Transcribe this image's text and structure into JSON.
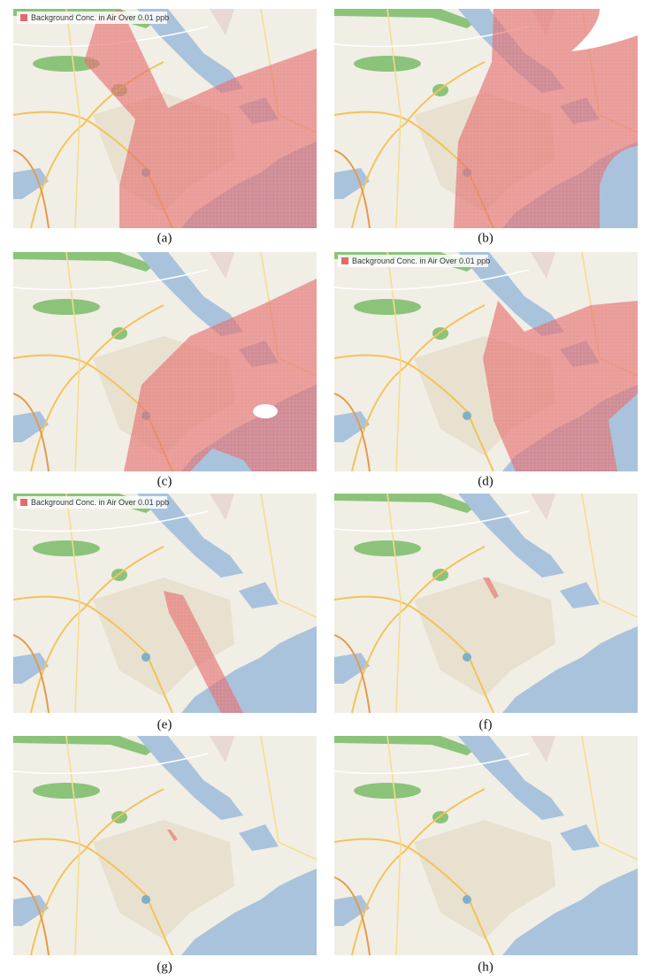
{
  "panels": [
    {
      "caption": "(a)",
      "legend": "Background Conc. in Air Over 0.01 ppb"
    },
    {
      "caption": "(b)"
    },
    {
      "caption": "(c)"
    },
    {
      "caption": "(d)",
      "legend": "Background Conc. in Air Over 0.01 ppb"
    },
    {
      "caption": "(e)",
      "legend": "Background Conc. in Air Over 0.01 ppb"
    },
    {
      "caption": "(f)"
    },
    {
      "caption": "(g)"
    },
    {
      "caption": "(h)"
    }
  ]
}
